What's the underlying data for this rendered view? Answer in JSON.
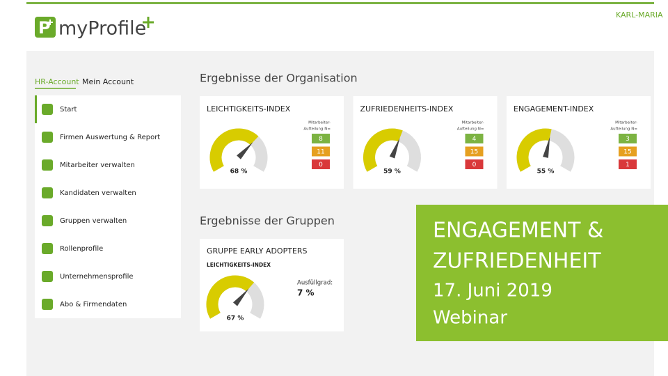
{
  "header": {
    "logo_text": "myProfile",
    "logo_mark": "P",
    "user": "KARL-MARIA"
  },
  "tabs": [
    "HR-Account",
    "Mein Account"
  ],
  "menu": [
    "Start",
    "Firmen Auswertung & Report",
    "Mitarbeiter verwalten",
    "Kandidaten verwalten",
    "Gruppen verwalten",
    "Rollenprofile",
    "Unternehmensprofile",
    "Abo & Firmendaten"
  ],
  "org": {
    "title": "Ergebnisse der Organisation",
    "cards": [
      {
        "title": "LEICHTIGKEITS-INDEX",
        "gauge": {
          "value": 68,
          "label": "68 %"
        },
        "distribution_label": [
          "Mitarbeiter-",
          "Aufteilung N="
        ],
        "counts": [
          "8",
          "11",
          "0"
        ]
      },
      {
        "title": "ZUFRIEDENHEITS-INDEX",
        "gauge": {
          "value": 59,
          "label": "59 %"
        },
        "distribution_label": [
          "Mitarbeiter-",
          "Aufteilung N="
        ],
        "counts": [
          "4",
          "15",
          "0"
        ]
      },
      {
        "title": "ENGAGEMENT-INDEX",
        "gauge": {
          "value": 55,
          "label": "55 %"
        },
        "distribution_label": [
          "Mitarbeiter-",
          "Aufteilung N="
        ],
        "counts": [
          "3",
          "15",
          "1"
        ]
      }
    ]
  },
  "groups": {
    "title": "Ergebnisse der Gruppen",
    "cards": [
      {
        "title": "GRUPPE EARLY ADOPTERS",
        "subtitle": "LEICHTIGKEITS-INDEX",
        "gauge": {
          "value": 67,
          "label": "67 %"
        },
        "fill_label": "Ausfüllgrad:",
        "fill_value": "7 %"
      }
    ]
  },
  "banner": {
    "lines": [
      "ENGAGEMENT &",
      "ZUFRIEDENHEIT",
      "17. Juni 2019",
      "Webinar"
    ]
  }
}
